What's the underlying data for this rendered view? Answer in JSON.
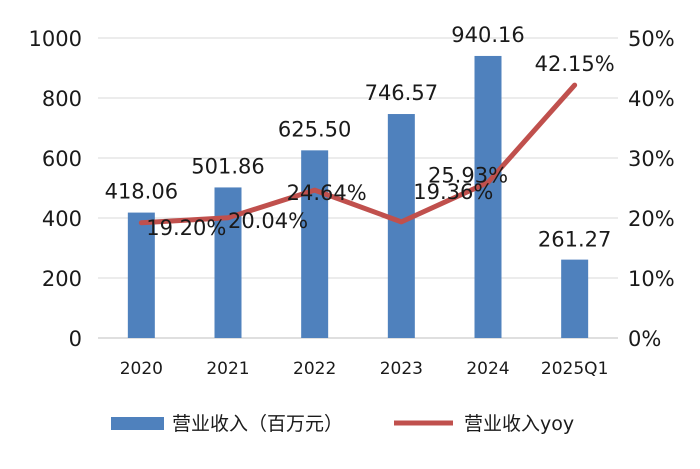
{
  "chart_data": {
    "type": "bar+line",
    "categories": [
      "2020",
      "2021",
      "2022",
      "2023",
      "2024",
      "2025Q1"
    ],
    "series": [
      {
        "name": "营业收入（百万元）",
        "type": "bar",
        "axis": "left",
        "color": "#4F81BD",
        "values": [
          418.06,
          501.86,
          625.5,
          746.57,
          940.16,
          261.27
        ],
        "labels": [
          "418.06",
          "501.86",
          "625.50",
          "746.57",
          "940.16",
          "261.27"
        ]
      },
      {
        "name": "营业收入yoy",
        "type": "line",
        "axis": "right",
        "color": "#C0504D",
        "values": [
          19.2,
          20.04,
          24.64,
          19.36,
          25.93,
          42.15
        ],
        "labels": [
          "19.20%",
          "20.04%",
          "24.64%",
          "19.36%",
          "25.93%",
          "42.15%"
        ]
      }
    ],
    "y_left": {
      "min": 0,
      "max": 1000,
      "ticks": [
        "0",
        "200",
        "400",
        "600",
        "800",
        "1000"
      ]
    },
    "y_right": {
      "min": 0,
      "max": 50,
      "ticks": [
        "0%",
        "10%",
        "20%",
        "30%",
        "40%",
        "50%"
      ]
    },
    "grid": true,
    "legend_position": "bottom"
  }
}
